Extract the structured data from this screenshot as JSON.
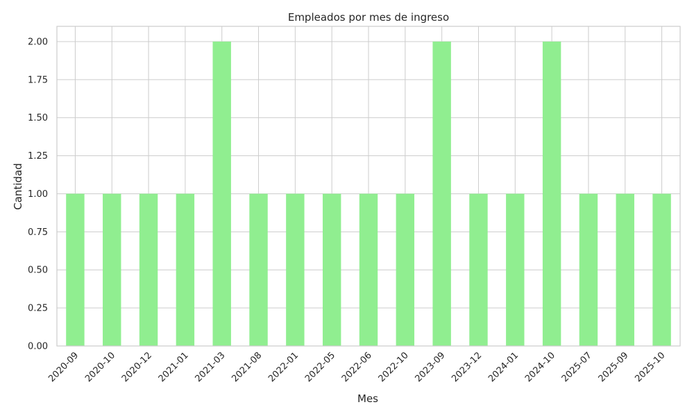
{
  "chart_data": {
    "type": "bar",
    "title": "Empleados por mes de ingreso",
    "xlabel": "Mes",
    "ylabel": "Cantidad",
    "categories": [
      "2020-09",
      "2020-10",
      "2020-12",
      "2021-01",
      "2021-03",
      "2021-08",
      "2022-01",
      "2022-05",
      "2022-06",
      "2022-10",
      "2023-09",
      "2023-12",
      "2024-01",
      "2024-10",
      "2025-07",
      "2025-09",
      "2025-10"
    ],
    "values": [
      1,
      1,
      1,
      1,
      2,
      1,
      1,
      1,
      1,
      1,
      2,
      1,
      1,
      2,
      1,
      1,
      1
    ],
    "ylim": [
      0,
      2.1
    ],
    "yticks": [
      "0.00",
      "0.25",
      "0.50",
      "0.75",
      "1.00",
      "1.25",
      "1.50",
      "1.75",
      "2.00"
    ],
    "grid": true,
    "bar_color": "#90ee90",
    "grid_color": "#cccccc"
  }
}
